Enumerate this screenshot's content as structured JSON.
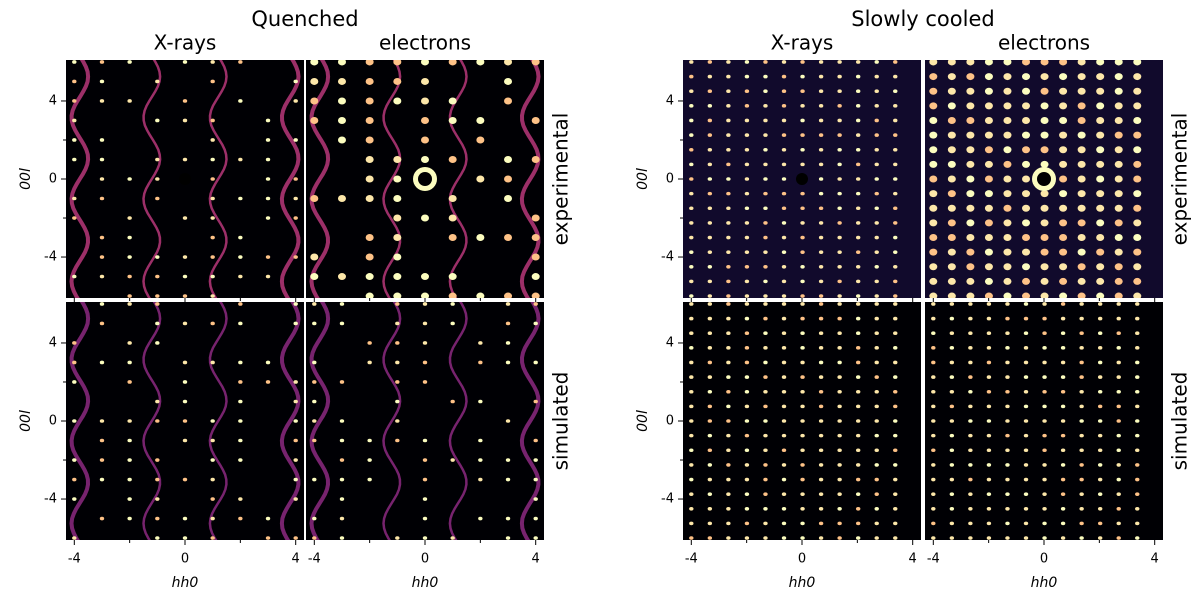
{
  "figure": {
    "groups": [
      {
        "title": "Quenched",
        "columns": [
          "X-rays",
          "electrons"
        ]
      },
      {
        "title": "Slowly cooled",
        "columns": [
          "X-rays",
          "electrons"
        ]
      }
    ],
    "rows": [
      "experimental",
      "simulated"
    ],
    "xlabel": "hh0",
    "ylabel": "00l",
    "xlim": [
      -4.3,
      4.3
    ],
    "ylim": [
      -6.1,
      6.1
    ],
    "xticks": [
      -4,
      0,
      4
    ],
    "yticks": [
      4,
      0,
      -4
    ],
    "minor_xticks": [
      -2,
      2
    ],
    "minor_yticks": [
      2,
      -2
    ]
  }
}
